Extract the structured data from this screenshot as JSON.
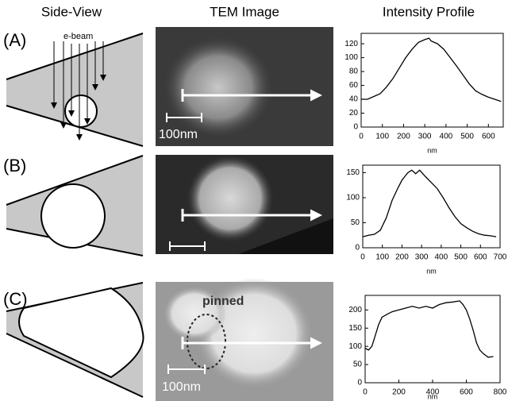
{
  "figure": {
    "headers": [
      "Side-View",
      "TEM Image",
      "Intensity Profile"
    ],
    "row_labels": [
      "(A)",
      "(B)",
      "(C)"
    ],
    "ebeam_label": "e-beam",
    "scale_labels": [
      "100nm",
      "100nm",
      "100nm"
    ],
    "annotation": "pinned"
  },
  "chart_data": [
    {
      "type": "line",
      "x_label": "nm",
      "color": "#000000",
      "x": [
        0,
        30,
        60,
        90,
        120,
        150,
        180,
        210,
        240,
        270,
        300,
        320,
        330,
        360,
        390,
        420,
        450,
        480,
        510,
        540,
        570,
        600,
        630,
        660
      ],
      "values": [
        40,
        40,
        44,
        48,
        58,
        70,
        85,
        100,
        112,
        122,
        126,
        128,
        124,
        120,
        112,
        100,
        88,
        75,
        62,
        52,
        47,
        43,
        40,
        37
      ],
      "xlim": [
        0,
        670
      ],
      "xticks": [
        0,
        100,
        200,
        300,
        400,
        500,
        600
      ],
      "ylim": [
        0,
        135
      ],
      "yticks": [
        0,
        20,
        40,
        60,
        80,
        100,
        120
      ]
    },
    {
      "type": "line",
      "x_label": "nm",
      "color": "#000000",
      "x": [
        0,
        30,
        60,
        90,
        120,
        150,
        180,
        200,
        230,
        250,
        270,
        290,
        320,
        350,
        380,
        410,
        440,
        470,
        500,
        530,
        560,
        590,
        620,
        650,
        680
      ],
      "values": [
        22,
        25,
        27,
        35,
        60,
        95,
        120,
        135,
        150,
        155,
        148,
        155,
        142,
        130,
        118,
        100,
        80,
        62,
        48,
        40,
        33,
        28,
        25,
        24,
        22
      ],
      "xlim": [
        0,
        700
      ],
      "xticks": [
        0,
        100,
        200,
        300,
        400,
        500,
        600,
        700
      ],
      "ylim": [
        0,
        165
      ],
      "yticks": [
        0,
        50,
        100,
        150
      ]
    },
    {
      "type": "line",
      "x_label": "nm",
      "color": "#000000",
      "x": [
        0,
        20,
        40,
        60,
        80,
        100,
        130,
        160,
        200,
        240,
        280,
        320,
        360,
        400,
        440,
        480,
        520,
        560,
        580,
        600,
        620,
        640,
        660,
        680,
        700,
        730,
        760
      ],
      "values": [
        95,
        90,
        100,
        130,
        160,
        180,
        188,
        195,
        200,
        205,
        210,
        205,
        210,
        205,
        215,
        220,
        222,
        225,
        215,
        200,
        175,
        145,
        110,
        90,
        80,
        70,
        72
      ],
      "xlim": [
        0,
        800
      ],
      "xticks": [
        0,
        200,
        400,
        600,
        800
      ],
      "ylim": [
        0,
        240
      ],
      "yticks": [
        0,
        50,
        100,
        150,
        200
      ]
    }
  ]
}
